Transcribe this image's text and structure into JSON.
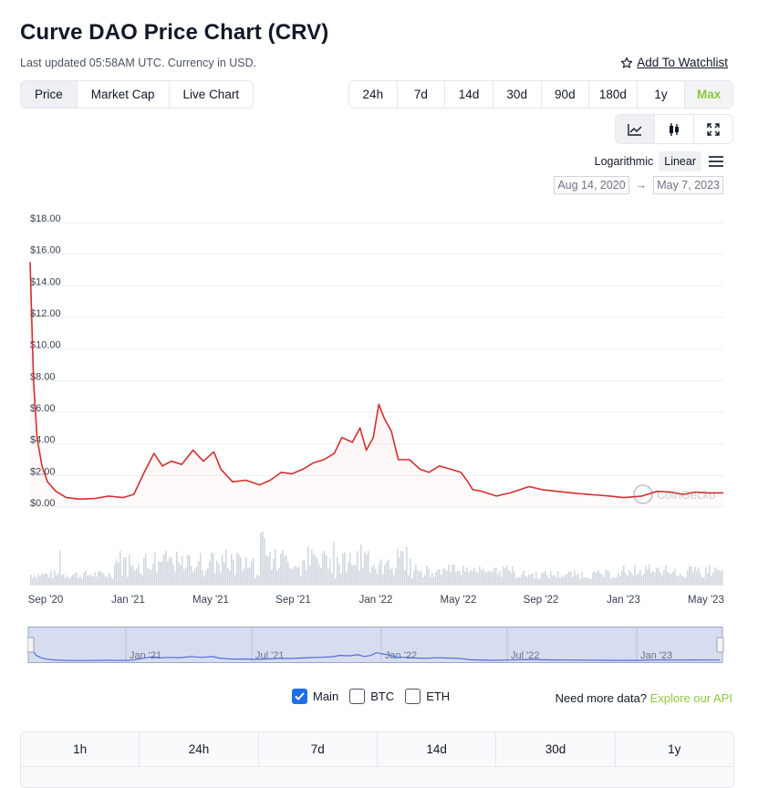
{
  "header": {
    "title": "Curve DAO Price Chart (CRV)",
    "updated": "Last updated 05:58AM UTC. Currency in USD.",
    "watchlist_label": "Add To Watchlist"
  },
  "type_tabs": [
    {
      "label": "Price",
      "active": true
    },
    {
      "label": "Market Cap",
      "active": false
    },
    {
      "label": "Live Chart",
      "active": false
    }
  ],
  "range_tabs": [
    {
      "label": "24h",
      "active": false
    },
    {
      "label": "7d",
      "active": false
    },
    {
      "label": "14d",
      "active": false
    },
    {
      "label": "30d",
      "active": false
    },
    {
      "label": "90d",
      "active": false
    },
    {
      "label": "180d",
      "active": false
    },
    {
      "label": "1y",
      "active": false
    },
    {
      "label": "Max",
      "active": true
    }
  ],
  "view_icons": [
    "line-chart-icon",
    "candlestick-icon",
    "fullscreen-icon"
  ],
  "scale": {
    "log_label": "Logarithmic",
    "linear_label": "Linear",
    "active": "Linear"
  },
  "date_range": {
    "from": "Aug 14, 2020",
    "arrow": "→",
    "to": "May 7, 2023"
  },
  "chart_data": {
    "type": "line",
    "title": "",
    "xlabel": "",
    "ylabel": "",
    "ylim": [
      0,
      18
    ],
    "y_ticks": [
      "$0.00",
      "$2.00",
      "$4.00",
      "$6.00",
      "$8.00",
      "$10.00",
      "$12.00",
      "$14.00",
      "$16.00",
      "$18.00"
    ],
    "x_ticks": [
      "Sep '20",
      "Jan '21",
      "May '21",
      "Sep '21",
      "Jan '22",
      "May '22",
      "Sep '22",
      "Jan '23",
      "May '23"
    ],
    "x_start": "2020-08-14",
    "x_end": "2023-05-07",
    "series": [
      {
        "color": "#d32f2f",
        "x": [
          "2020-08-14",
          "2020-08-16",
          "2020-08-19",
          "2020-08-24",
          "2020-08-31",
          "2020-09-08",
          "2020-09-20",
          "2020-10-05",
          "2020-10-25",
          "2020-11-15",
          "2020-12-05",
          "2020-12-25",
          "2021-01-10",
          "2021-01-25",
          "2021-02-08",
          "2021-02-20",
          "2021-03-05",
          "2021-03-20",
          "2021-04-05",
          "2021-04-20",
          "2021-05-05",
          "2021-05-15",
          "2021-06-01",
          "2021-06-20",
          "2021-07-10",
          "2021-07-25",
          "2021-08-10",
          "2021-08-25",
          "2021-09-10",
          "2021-09-25",
          "2021-10-10",
          "2021-10-25",
          "2021-11-05",
          "2021-11-20",
          "2021-12-01",
          "2021-12-10",
          "2021-12-20",
          "2021-12-28",
          "2022-01-05",
          "2022-01-15",
          "2022-01-25",
          "2022-02-10",
          "2022-02-25",
          "2022-03-10",
          "2022-03-25",
          "2022-04-10",
          "2022-04-25",
          "2022-05-05",
          "2022-05-12",
          "2022-05-25",
          "2022-06-15",
          "2022-07-05",
          "2022-08-01",
          "2022-08-20",
          "2022-09-10",
          "2022-10-01",
          "2022-10-25",
          "2022-11-10",
          "2022-11-25",
          "2022-12-15",
          "2023-01-10",
          "2023-02-01",
          "2023-02-20",
          "2023-03-10",
          "2023-03-28",
          "2023-04-15",
          "2023-05-07"
        ],
        "values": [
          15.5,
          12.5,
          8.0,
          4.4,
          2.6,
          1.6,
          1.0,
          0.6,
          0.5,
          0.55,
          0.7,
          0.6,
          0.8,
          2.2,
          3.4,
          2.6,
          2.9,
          2.7,
          3.6,
          2.9,
          3.5,
          2.4,
          1.6,
          1.7,
          1.4,
          1.7,
          2.2,
          2.1,
          2.4,
          2.8,
          3.0,
          3.4,
          4.4,
          4.1,
          5.0,
          3.6,
          4.4,
          6.5,
          5.6,
          4.8,
          3.0,
          3.0,
          2.4,
          2.2,
          2.6,
          2.4,
          2.2,
          1.6,
          1.1,
          1.0,
          0.7,
          0.9,
          1.3,
          1.1,
          1.0,
          0.9,
          0.8,
          0.75,
          0.7,
          0.6,
          0.7,
          1.0,
          0.95,
          0.8,
          0.95,
          0.9,
          0.9
        ]
      }
    ],
    "grid": true,
    "watermark": "CoinGecko",
    "volume": true
  },
  "navigator": {
    "labels": [
      "Jan '21",
      "Jul '21",
      "Jan '22",
      "Jul '22",
      "Jan '23"
    ]
  },
  "series_toggle": [
    {
      "label": "Main",
      "checked": true
    },
    {
      "label": "BTC",
      "checked": false
    },
    {
      "label": "ETH",
      "checked": false
    }
  ],
  "api": {
    "text": "Need more data?",
    "link": "Explore our API"
  },
  "stats_tabs": [
    "1h",
    "24h",
    "7d",
    "14d",
    "30d",
    "1y"
  ]
}
